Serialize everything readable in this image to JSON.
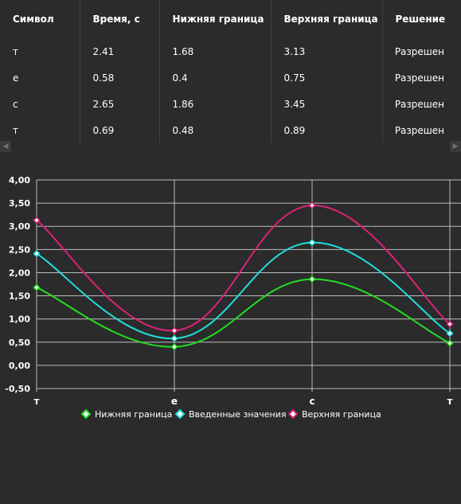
{
  "table": {
    "columns": [
      "Символ",
      "Время, с",
      "Нижняя граница",
      "Верхняя граница",
      "Решение"
    ],
    "rows": [
      {
        "symbol": "т",
        "time": "2.41",
        "lower": "1.68",
        "upper": "3.13",
        "decision": "Разрешен"
      },
      {
        "symbol": "е",
        "time": "0.58",
        "lower": "0.4",
        "upper": "0.75",
        "decision": "Разрешен"
      },
      {
        "symbol": "с",
        "time": "2.65",
        "lower": "1.86",
        "upper": "3.45",
        "decision": "Разрешен"
      },
      {
        "symbol": "т",
        "time": "0.69",
        "lower": "0.48",
        "upper": "0.89",
        "decision": "Разрешен"
      }
    ]
  },
  "scroll": {
    "left_glyph": "◀",
    "right_glyph": "▶"
  },
  "chart_data": {
    "type": "line",
    "categories": [
      "т",
      "е",
      "с",
      "т"
    ],
    "series": [
      {
        "name": "Нижняя граница",
        "values": [
          1.68,
          0.4,
          1.86,
          0.48
        ],
        "color": "#22dd22"
      },
      {
        "name": "Введенные значения",
        "values": [
          2.41,
          0.58,
          2.65,
          0.69
        ],
        "color": "#22dddd"
      },
      {
        "name": "Верхняя граница",
        "values": [
          3.13,
          0.75,
          3.45,
          0.89
        ],
        "color": "#dd2277"
      }
    ],
    "ylim": [
      -0.5,
      4.0
    ],
    "yticks": [
      "-0,50",
      "0,00",
      "0,50",
      "1,00",
      "1,50",
      "2,00",
      "2,50",
      "3,00",
      "3,50",
      "4,00"
    ],
    "ytick_values": [
      -0.5,
      0,
      0.5,
      1.0,
      1.5,
      2.0,
      2.5,
      3.0,
      3.5,
      4.0
    ],
    "grid": true,
    "smooth": true,
    "legend_position": "bottom",
    "background": "#2b2b2b",
    "grid_color": "#bdbdbd"
  }
}
